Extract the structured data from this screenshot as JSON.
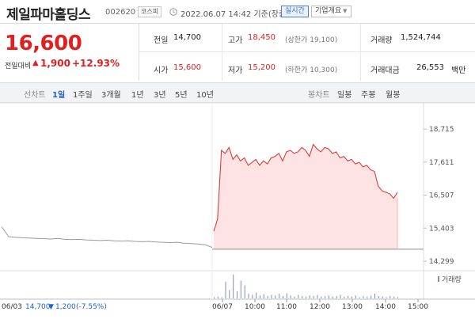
{
  "header": {
    "name": "제일파마홀딩스",
    "code": "002620",
    "market": "코스피",
    "timestamp": "2022.06.07 14:42 기준(장중)",
    "realtime_btn": "실시간",
    "company_btn": "기업개요"
  },
  "price": {
    "current": "16,600",
    "change_label": "전일대비",
    "change_arrow": "▲",
    "change_amount": "1,900",
    "change_pct": "+12.93%"
  },
  "stats": {
    "prev_close": {
      "label": "전일",
      "value": "14,700"
    },
    "high": {
      "label": "고가",
      "value": "18,450",
      "sub": "(상한가 19,100)"
    },
    "volume": {
      "label": "거래량",
      "value": "1,524,744"
    },
    "open": {
      "label": "시가",
      "value": "15,600"
    },
    "low": {
      "label": "저가",
      "value": "15,200",
      "sub": "(하한가 10,300)"
    },
    "amount": {
      "label": "거래대금",
      "value": "26,553",
      "unit": "백만"
    }
  },
  "tabs": {
    "line_chart": "선차트",
    "periods": [
      "1일",
      "1주일",
      "3개월",
      "1년",
      "3년",
      "5년",
      "10년"
    ],
    "active_period": "1일",
    "candle_chart": "봉차트",
    "candles": [
      "일봉",
      "주봉",
      "월봉"
    ]
  },
  "chart_data": {
    "type": "line",
    "y_ticks": [
      "18,715",
      "17,611",
      "16,507",
      "15,403",
      "14,299"
    ],
    "ylim": [
      14299,
      18715
    ],
    "x_ticks": [
      "06/07",
      "10:00",
      "11:00",
      "12:00",
      "13:00",
      "14:00",
      "15:00"
    ],
    "volume_label": "거래량",
    "prev_day": {
      "date": "06/03",
      "close": "14,700",
      "change_arrow": "▼",
      "change": "1,200",
      "change_pct": "(-7.55%)"
    },
    "prev_day_series": {
      "name": "06/03",
      "values": [
        15450,
        15120,
        15100,
        15080,
        15070,
        15060,
        15050,
        15040,
        15060,
        15030,
        15020,
        15030,
        15010,
        15000,
        14990,
        15000,
        14980,
        14970,
        14980,
        14960,
        14950,
        14960,
        14940,
        14930,
        14920,
        14930,
        14900,
        14890,
        14870,
        14850,
        14760
      ]
    },
    "today_series": {
      "name": "06/07",
      "values": [
        15300,
        15700,
        18000,
        17900,
        18100,
        17700,
        17850,
        17650,
        17750,
        17500,
        17600,
        17700,
        17500,
        17650,
        17550,
        17750,
        17800,
        17900,
        17650,
        17950,
        18000,
        17900,
        17950,
        18100,
        18000,
        17800,
        18200,
        18050,
        17950,
        18100,
        18050,
        17900,
        17950,
        17750,
        17800,
        17650,
        17700,
        17550,
        17600,
        17450,
        17500,
        17350,
        17300,
        16800,
        16650,
        16600,
        16550,
        16400,
        16600
      ]
    },
    "prev_close_value": 14700,
    "volume_bars": [
      2,
      3,
      2,
      28,
      14,
      40,
      12,
      30,
      22,
      8,
      6,
      10,
      5,
      7,
      4,
      6,
      5,
      8,
      4,
      9,
      5,
      3,
      6,
      4,
      3,
      5,
      4,
      6,
      3,
      4,
      5,
      3,
      4,
      6,
      3,
      4,
      3,
      5,
      2,
      4,
      3,
      5,
      8,
      4,
      3,
      2,
      4,
      3,
      2
    ],
    "colors": {
      "line": "#e03a3a",
      "area": "#fde3e3",
      "prev_line": "#9a9a9a",
      "down": "#1f5fcf"
    }
  }
}
